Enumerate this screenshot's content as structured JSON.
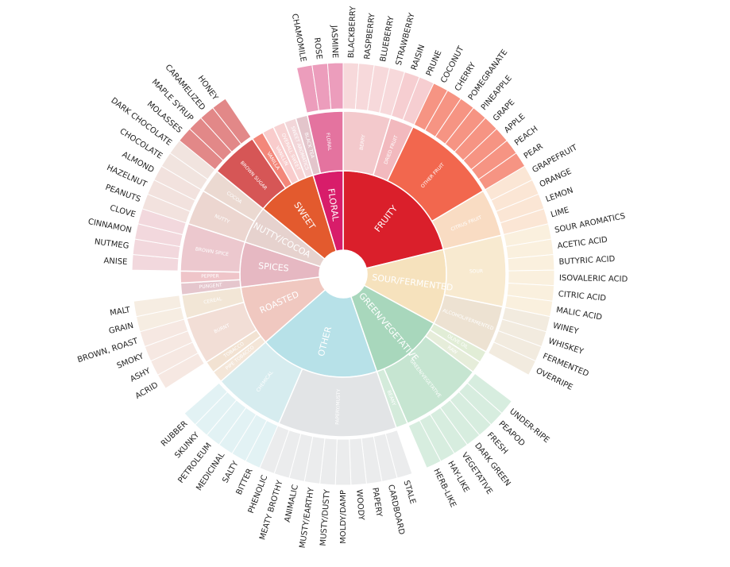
{
  "wheel": {
    "categories": [
      {
        "label": "FRUITY",
        "color": "#da1f2b",
        "children": [
          {
            "label": "BERRY",
            "color": "#f3c9cc",
            "children": [
              "BLACKBERRY",
              "RASPBERRY",
              "BLUEBERRY",
              "STRAWBERRY"
            ]
          },
          {
            "label": "DRIED FRUIT",
            "color": "#f2b9be",
            "children": [
              "RAISIN",
              "PRUNE"
            ]
          },
          {
            "label": "OTHER FRUIT",
            "color": "#f2674e",
            "children": [
              "COCONUT",
              "CHERRY",
              "POMEGRANATE",
              "PINEAPPLE",
              "GRAPE",
              "APPLE",
              "PEACH",
              "PEAR"
            ]
          },
          {
            "label": "CITRUS FRUIT",
            "color": "#f9dcc3",
            "children": [
              "GRAPEFRUIT",
              "ORANGE",
              "LEMON",
              "LIME"
            ]
          }
        ]
      },
      {
        "label": "SOUR/FERMENTED",
        "color": "#f6e2bd",
        "children": [
          {
            "label": "SOUR",
            "color": "#f8ead0",
            "children": [
              "SOUR AROMATICS",
              "ACETIC ACID",
              "BUTYRIC ACID",
              "ISOVALERIC ACID",
              "CITRIC ACID",
              "MALIC ACID"
            ]
          },
          {
            "label": "ALCOHOL/FERMENTED",
            "color": "#ede2d2",
            "children": [
              "WINEY",
              "WHISKEY",
              "FERMENTED",
              "OVERRIPE"
            ]
          }
        ]
      },
      {
        "label": "GREEN/VEGETATIVE",
        "color": "#a8d7bc",
        "children": [
          {
            "label": "OLIVE OIL",
            "color": "#e1edd6",
            "children": []
          },
          {
            "label": "RAW",
            "color": "#e6edda",
            "children": []
          },
          {
            "label": "GREEN/VEGETATIVE",
            "color": "#c6e5d1",
            "children": [
              "UNDER-RIPE",
              "PEAPOD",
              "FRESH",
              "DARK GREEN",
              "VEGETATIVE",
              "HAY-LIKE",
              "HERB-LIKE"
            ]
          },
          {
            "label": "BEANY",
            "color": "#d4ebdb",
            "children": []
          }
        ]
      },
      {
        "label": "OTHER",
        "color": "#b7e1e8",
        "children": [
          {
            "label": "PAPERY/MUSTY",
            "color": "#e2e4e6",
            "children": [
              "STALE",
              "CARDBOARD",
              "PAPERY",
              "WOODY",
              "MOLDY/DAMP",
              "MUSTY/DUSTY",
              "MUSTY/EARTHY",
              "ANIMALIC",
              "MEATY BROTHY",
              "PHENOLIC"
            ]
          },
          {
            "label": "CHEMICAL",
            "color": "#d6ecef",
            "children": [
              "BITTER",
              "SALTY",
              "MEDICINAL",
              "PETROLEUM",
              "SKUNKY",
              "RUBBER"
            ]
          }
        ]
      },
      {
        "label": "ROASTED",
        "color": "#f0c8c0",
        "children": [
          {
            "label": "PIPE TOBACCO",
            "color": "#f4e6d8",
            "children": []
          },
          {
            "label": "TOBACCO",
            "color": "#f2e2d2",
            "children": []
          },
          {
            "label": "BURNT",
            "color": "#f2ded6",
            "children": [
              "ACRID",
              "ASHY",
              "SMOKY",
              "BROWN, ROAST"
            ]
          },
          {
            "label": "CEREAL",
            "color": "#f2e6d6",
            "children": [
              "GRAIN",
              "MALT"
            ]
          }
        ]
      },
      {
        "label": "SPICES",
        "color": "#e6b8c2",
        "children": [
          {
            "label": "PUNGENT",
            "color": "#e5c6cd",
            "children": []
          },
          {
            "label": "PEPPER",
            "color": "#efc5c9",
            "children": []
          },
          {
            "label": "BROWN SPICE",
            "color": "#ecc8ce",
            "children": [
              "ANISE",
              "NUTMEG",
              "CINNAMON",
              "CLOVE"
            ]
          }
        ]
      },
      {
        "label": "NUTTY/COCOA",
        "color": "#e6d2ce",
        "children": [
          {
            "label": "NUTTY",
            "color": "#ecd6d0",
            "children": [
              "PEANUTS",
              "HAZELNUT",
              "ALMOND"
            ]
          },
          {
            "label": "COCOA",
            "color": "#ebd9d1",
            "children": [
              "CHOCOLATE",
              "DARK CHOCOLATE"
            ]
          }
        ]
      },
      {
        "label": "SWEET",
        "color": "#e35a2e",
        "children": [
          {
            "label": "BROWN SUGAR",
            "color": "#d65656",
            "children": [
              "MOLASSES",
              "MAPLE SYRUP",
              "CARAMELIZED",
              "HONEY"
            ]
          },
          {
            "label": "VANILLA",
            "color": "#f3877a",
            "children": []
          },
          {
            "label": "VANILLIN",
            "color": "#f9cccc",
            "children": []
          },
          {
            "label": "OVERALL SWEET",
            "color": "#f7d3d3",
            "children": []
          },
          {
            "label": "SWEET AROMATICS",
            "color": "#f2d6d9",
            "children": []
          }
        ]
      },
      {
        "label": "FLORAL",
        "color": "#d81d6a",
        "children": [
          {
            "label": "BLACK TEA",
            "color": "#e3c5cb",
            "children": []
          },
          {
            "label": "FLORAL",
            "color": "#e4739f",
            "children": [
              "CHAMOMILE",
              "ROSE",
              "JASMINE"
            ]
          }
        ]
      }
    ]
  }
}
